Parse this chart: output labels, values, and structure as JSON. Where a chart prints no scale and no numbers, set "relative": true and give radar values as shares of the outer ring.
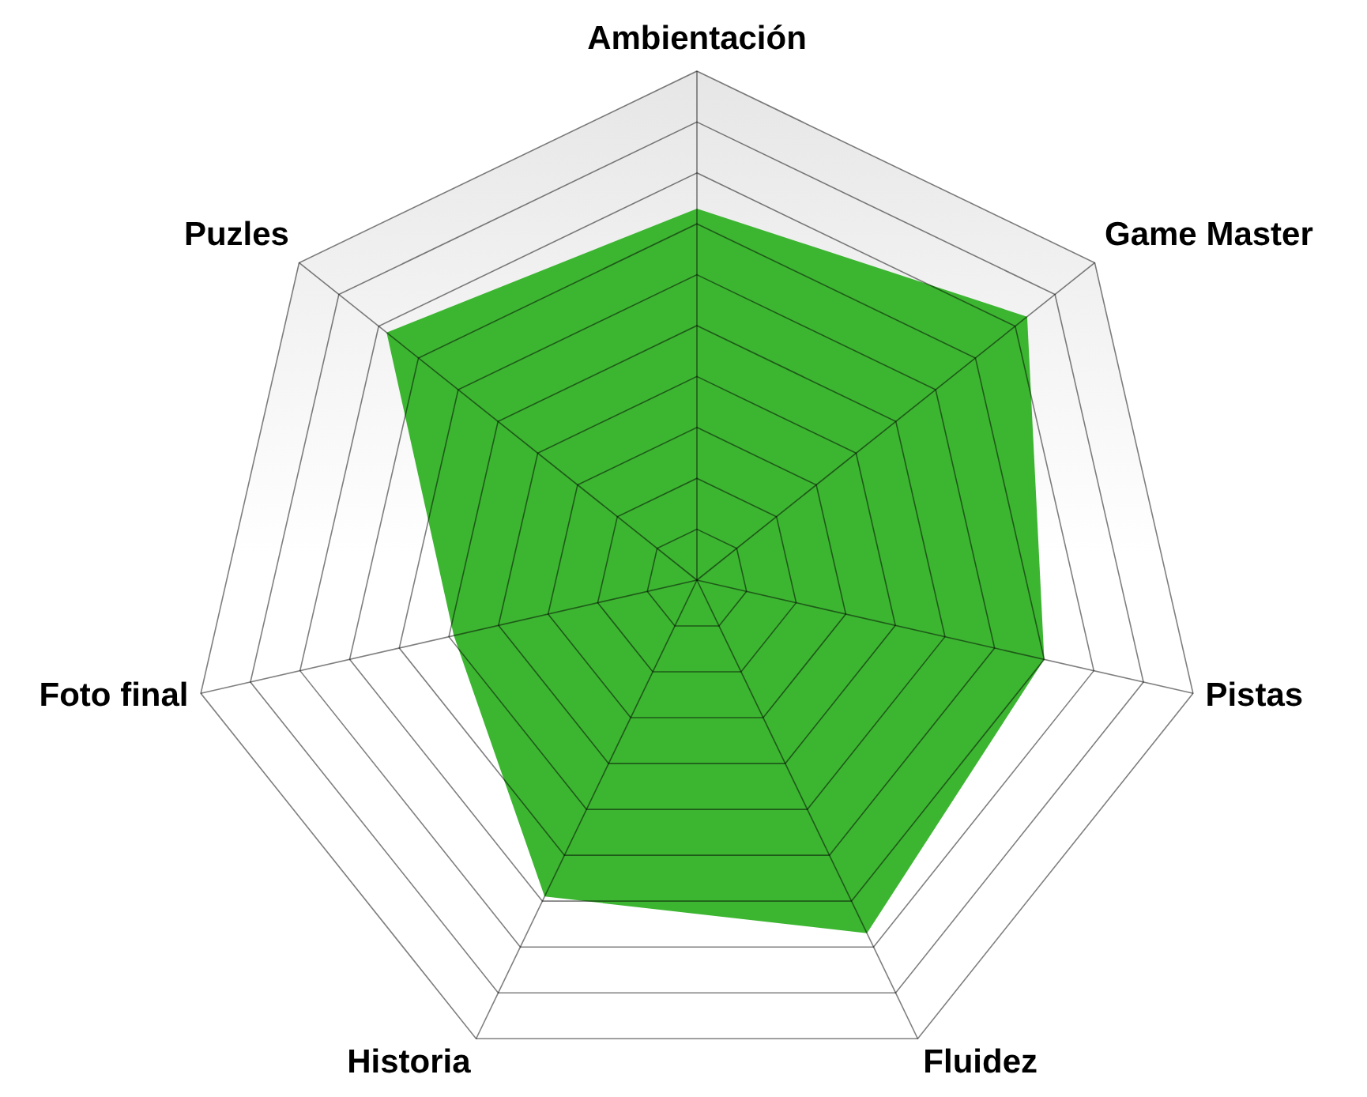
{
  "chart_data": {
    "type": "radar",
    "relative": true,
    "grid": true,
    "categories": [
      "Ambientación",
      "Game Master",
      "Pistas",
      "Fluidez",
      "Historia",
      "Foto final",
      "Puzles"
    ],
    "series": [
      {
        "color": "#3cb531",
        "values": [
          0.73,
          0.83,
          0.7,
          0.77,
          0.69,
          0.49,
          0.78
        ]
      }
    ]
  }
}
